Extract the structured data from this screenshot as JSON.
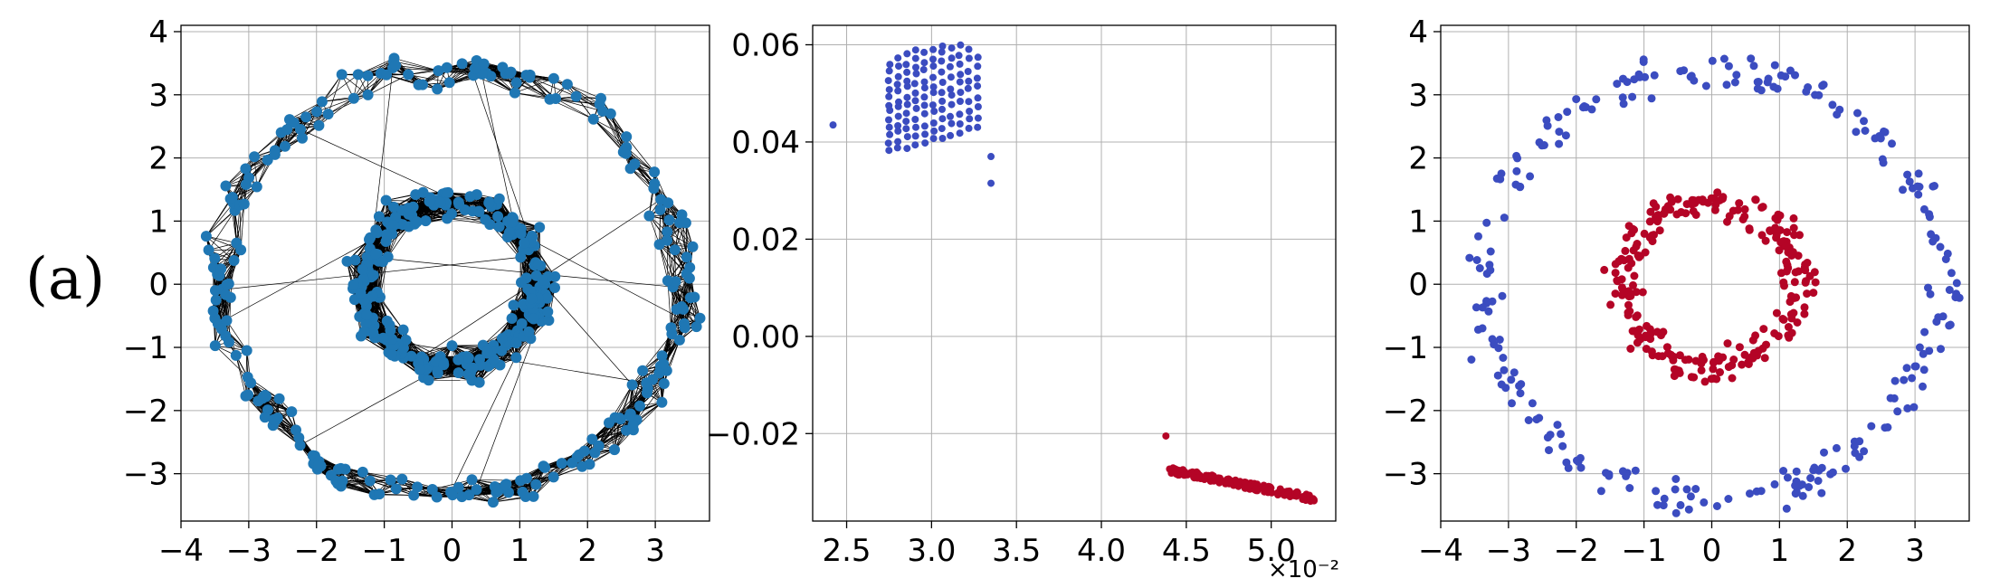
{
  "figure": {
    "panel_label": "(a)"
  },
  "colors": {
    "node": "#1f77b4",
    "edge": "#000000",
    "cluster_outer": "#3b4cc0",
    "cluster_inner": "#b40426",
    "grid": "#b0b0b0"
  },
  "chart_data": [
    {
      "type": "scatter",
      "variant": "graph (nodes connected by edges)",
      "title": "",
      "xlabel": "",
      "ylabel": "",
      "xlim": [
        -4.0,
        3.8
      ],
      "ylim": [
        -3.75,
        4.1
      ],
      "xticks": [
        "−4",
        "−3",
        "−2",
        "−1",
        "0",
        "1",
        "2",
        "3"
      ],
      "yticks": [
        "−3",
        "−2",
        "−1",
        "0",
        "1",
        "2",
        "3",
        "4"
      ],
      "grid": true,
      "series": [
        {
          "description": "outer ring nodes",
          "center": [
            0,
            0
          ],
          "radius": 3.4,
          "spread": 0.25,
          "count": 250
        },
        {
          "description": "inner ring nodes",
          "center": [
            0,
            0
          ],
          "radius": 1.3,
          "spread": 0.25,
          "count": 250
        }
      ]
    },
    {
      "type": "scatter",
      "title": "",
      "xlabel": "",
      "ylabel": "",
      "xlim": [
        2.3,
        5.38
      ],
      "ylim": [
        -0.038,
        0.064
      ],
      "xticks": [
        "2.5",
        "3.0",
        "3.5",
        "4.0",
        "4.5",
        "5.0"
      ],
      "yticks": [
        "−0.02",
        "0.00",
        "0.02",
        "0.04",
        "0.06"
      ],
      "x_offset_text": "×10⁻²",
      "grid": true,
      "series": [
        {
          "description": "cluster 1 (blue)",
          "x_range": [
            2.75,
            3.27
          ],
          "y_range": [
            0.038,
            0.06
          ],
          "outliers": [
            [
              2.42,
              0.0435
            ],
            [
              3.35,
              0.037
            ],
            [
              3.35,
              0.0315
            ]
          ]
        },
        {
          "description": "cluster 2 (red)",
          "line_from": [
            4.4,
            -0.0275
          ],
          "line_to": [
            5.27,
            -0.0335
          ],
          "outliers": [
            [
              4.38,
              -0.0205
            ]
          ]
        }
      ]
    },
    {
      "type": "scatter",
      "title": "",
      "xlabel": "",
      "ylabel": "",
      "xlim": [
        -4.0,
        3.8
      ],
      "ylim": [
        -3.75,
        4.1
      ],
      "xticks": [
        "−4",
        "−3",
        "−2",
        "−1",
        "0",
        "1",
        "2",
        "3"
      ],
      "yticks": [
        "−3",
        "−2",
        "−1",
        "0",
        "1",
        "2",
        "3",
        "4"
      ],
      "grid": true,
      "series": [
        {
          "description": "outer ring (blue)",
          "center": [
            0,
            0
          ],
          "radius": 3.4,
          "spread": 0.25,
          "count": 250
        },
        {
          "description": "inner ring (red)",
          "center": [
            0,
            0
          ],
          "radius": 1.3,
          "spread": 0.25,
          "count": 250
        }
      ]
    }
  ]
}
